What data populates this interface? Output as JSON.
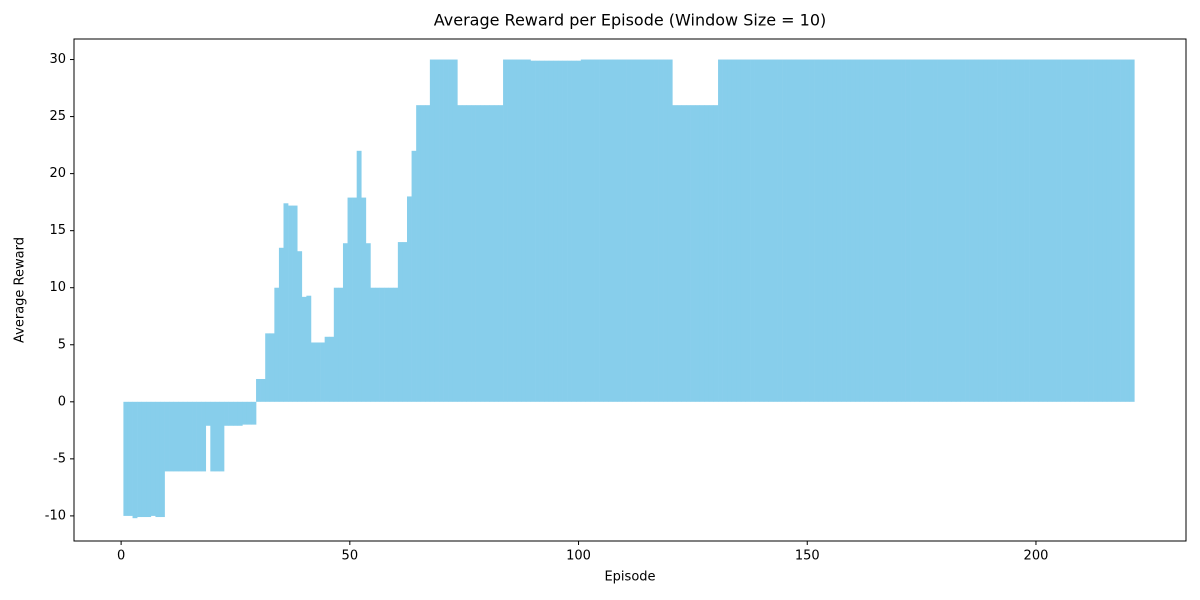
{
  "chart_data": {
    "type": "bar",
    "title": "Average Reward per Episode (Window Size = 10)",
    "xlabel": "Episode",
    "ylabel": "Average Reward",
    "color": "#87ceeb",
    "x": [
      1,
      2,
      3,
      4,
      5,
      6,
      7,
      8,
      9,
      10,
      11,
      12,
      13,
      14,
      15,
      16,
      17,
      18,
      19,
      20,
      21,
      22,
      23,
      24,
      25,
      26,
      27,
      28,
      29,
      30,
      31,
      32,
      33,
      34,
      35,
      36,
      37,
      38,
      39,
      40,
      41,
      42,
      43,
      44,
      45,
      46,
      47,
      48,
      49,
      50,
      51,
      52,
      53,
      54,
      55,
      56,
      57,
      58,
      59,
      60,
      61,
      62,
      63,
      64,
      65,
      66,
      67,
      68,
      69,
      70,
      71,
      72,
      73,
      74,
      75,
      76,
      77,
      78,
      79,
      80,
      81,
      82,
      83,
      84,
      85,
      86,
      87,
      88,
      89,
      90,
      91,
      92,
      93,
      94,
      95,
      96,
      97,
      98,
      99,
      100,
      101,
      102,
      103,
      104,
      105,
      106,
      107,
      108,
      109,
      110,
      111,
      112,
      113,
      114,
      115,
      116,
      117,
      118,
      119,
      120,
      121,
      122,
      123,
      124,
      125,
      126,
      127,
      128,
      129,
      130,
      131,
      132,
      133,
      134,
      135,
      136,
      137,
      138,
      139,
      140,
      141,
      142,
      143,
      144,
      145,
      146,
      147,
      148,
      149,
      150,
      151,
      152,
      153,
      154,
      155,
      156,
      157,
      158,
      159,
      160,
      161,
      162,
      163,
      164,
      165,
      166,
      167,
      168,
      169,
      170,
      171,
      172,
      173,
      174,
      175,
      176,
      177,
      178,
      179,
      180,
      181,
      182,
      183,
      184,
      185,
      186,
      187,
      188,
      189,
      190,
      191,
      192,
      193,
      194,
      195,
      196,
      197,
      198,
      199,
      200,
      201,
      202,
      203,
      204,
      205,
      206,
      207,
      208,
      209,
      210,
      211,
      212,
      213,
      214,
      215,
      216,
      217,
      218,
      219,
      220,
      221
    ],
    "values": [
      -10,
      -10,
      -10.2,
      -10.1,
      -10.1,
      -10.1,
      -10,
      -10.1,
      -10.1,
      -6.1,
      -6.1,
      -6.1,
      -6.1,
      -6.1,
      -6.1,
      -6.1,
      -6.1,
      -6.1,
      -2.1,
      -6.1,
      -6.1,
      -6.1,
      -2.1,
      -2.1,
      -2.1,
      -2.1,
      -2,
      -2,
      -2,
      2,
      2,
      6,
      6,
      10,
      13.5,
      17.4,
      17.2,
      17.2,
      13.2,
      9.2,
      9.3,
      5.2,
      5.2,
      5.2,
      5.7,
      5.7,
      10,
      10,
      13.9,
      17.9,
      17.9,
      22,
      17.9,
      13.9,
      10,
      10,
      10,
      10,
      10,
      10,
      14,
      14,
      18,
      22,
      26,
      26,
      26,
      30,
      30,
      30,
      30,
      30,
      30,
      26,
      26,
      26,
      26,
      26,
      26,
      26,
      26,
      26,
      26,
      30,
      30,
      30,
      30,
      30,
      30,
      29.9,
      29.9,
      29.9,
      29.9,
      29.9,
      29.9,
      29.9,
      29.9,
      29.9,
      29.9,
      29.9,
      30,
      30,
      30,
      30,
      30,
      30,
      30,
      30,
      30,
      30,
      30,
      30,
      30,
      30,
      30,
      30,
      30,
      30,
      30,
      30,
      26,
      26,
      26,
      26,
      26,
      26,
      26,
      26,
      26,
      26,
      30,
      30,
      30,
      30,
      30,
      30,
      30,
      30,
      30,
      30,
      30,
      30,
      30,
      30,
      30,
      30,
      30,
      30,
      30,
      30,
      30,
      30,
      30,
      30,
      30,
      30,
      30,
      30,
      30,
      30,
      30,
      30,
      30,
      30,
      30,
      30,
      30,
      30,
      30,
      30,
      30,
      30,
      30,
      30,
      30,
      30,
      30,
      30,
      30,
      30,
      30,
      30,
      30,
      30,
      30,
      30,
      30,
      30,
      30,
      30,
      30,
      30,
      30,
      30,
      30,
      30,
      30,
      30,
      30,
      30,
      30,
      30,
      30,
      30,
      30,
      30,
      30,
      30,
      30,
      30,
      30,
      30,
      30,
      30,
      30,
      30,
      30,
      30,
      30,
      30,
      30
    ],
    "xlim": [
      -10.3,
      232.8
    ],
    "xticks": [
      0,
      50,
      100,
      150,
      200
    ],
    "ylim": [
      -12.2,
      31.8
    ],
    "yticks": [
      -10,
      -5,
      0,
      5,
      10,
      15,
      20,
      25,
      30
    ],
    "grid": false
  }
}
